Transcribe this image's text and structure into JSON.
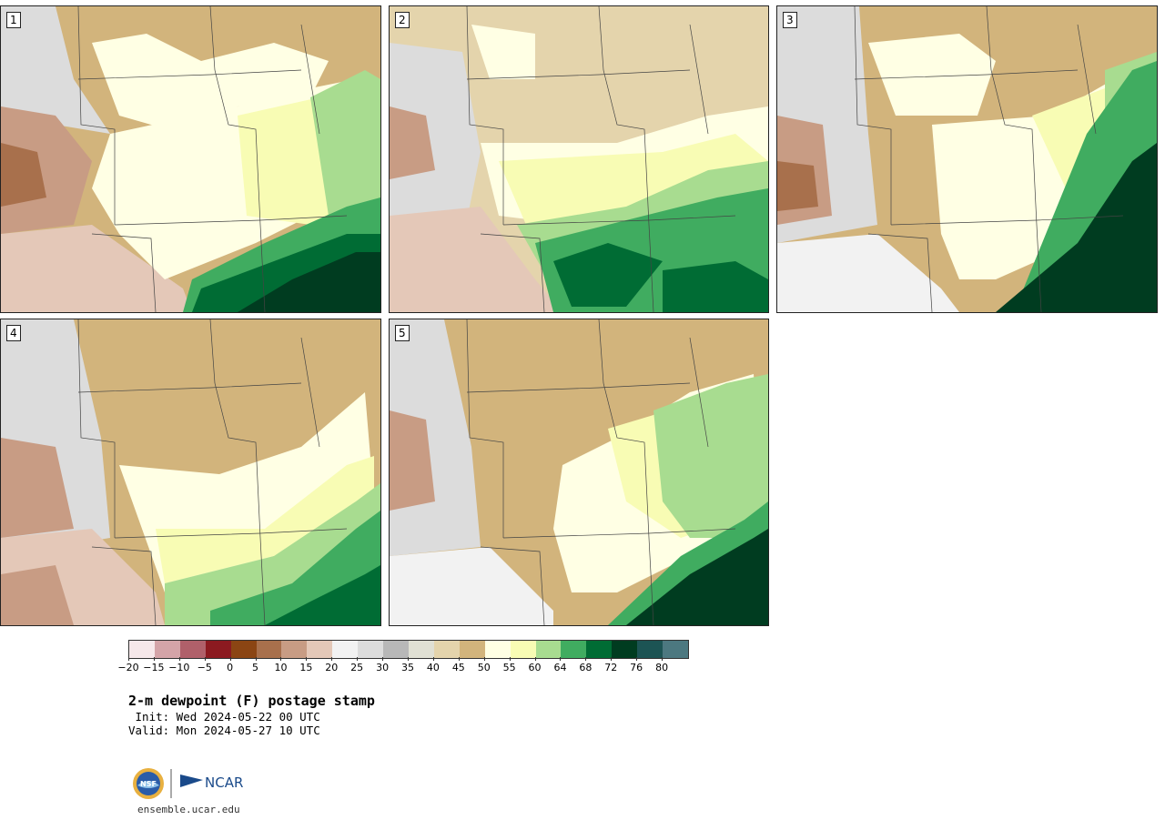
{
  "panels": [
    {
      "label": "1"
    },
    {
      "label": "2"
    },
    {
      "label": "3"
    },
    {
      "label": "4"
    },
    {
      "label": "5"
    }
  ],
  "colorbar": {
    "ticks": [
      "−20",
      "−15",
      "−10",
      "−5",
      "0",
      "5",
      "10",
      "15",
      "20",
      "25",
      "30",
      "35",
      "40",
      "45",
      "50",
      "55",
      "60",
      "64",
      "68",
      "72",
      "76",
      "80"
    ],
    "colors": [
      "#f6e8ea",
      "#d4a4a8",
      "#b0606a",
      "#8c1a20",
      "#8b4513",
      "#a8704c",
      "#c89c84",
      "#e4c8b8",
      "#f2f2f2",
      "#dcdcdc",
      "#b8b8b8",
      "#e0e0d4",
      "#e4d4ac",
      "#d2b47c",
      "#ffffe4",
      "#f8fcb4",
      "#a8dc90",
      "#40ac60",
      "#006c34",
      "#003c20",
      "#1c5454",
      "#4c7880"
    ]
  },
  "title": "2-m dewpoint (F) postage stamp",
  "init": " Init: Wed 2024-05-22 00 UTC",
  "valid": "Valid: Mon 2024-05-27 10 UTC",
  "logos": {
    "nsf": "NSF",
    "ncar": "NCAR"
  },
  "url": "ensemble.ucar.edu"
}
